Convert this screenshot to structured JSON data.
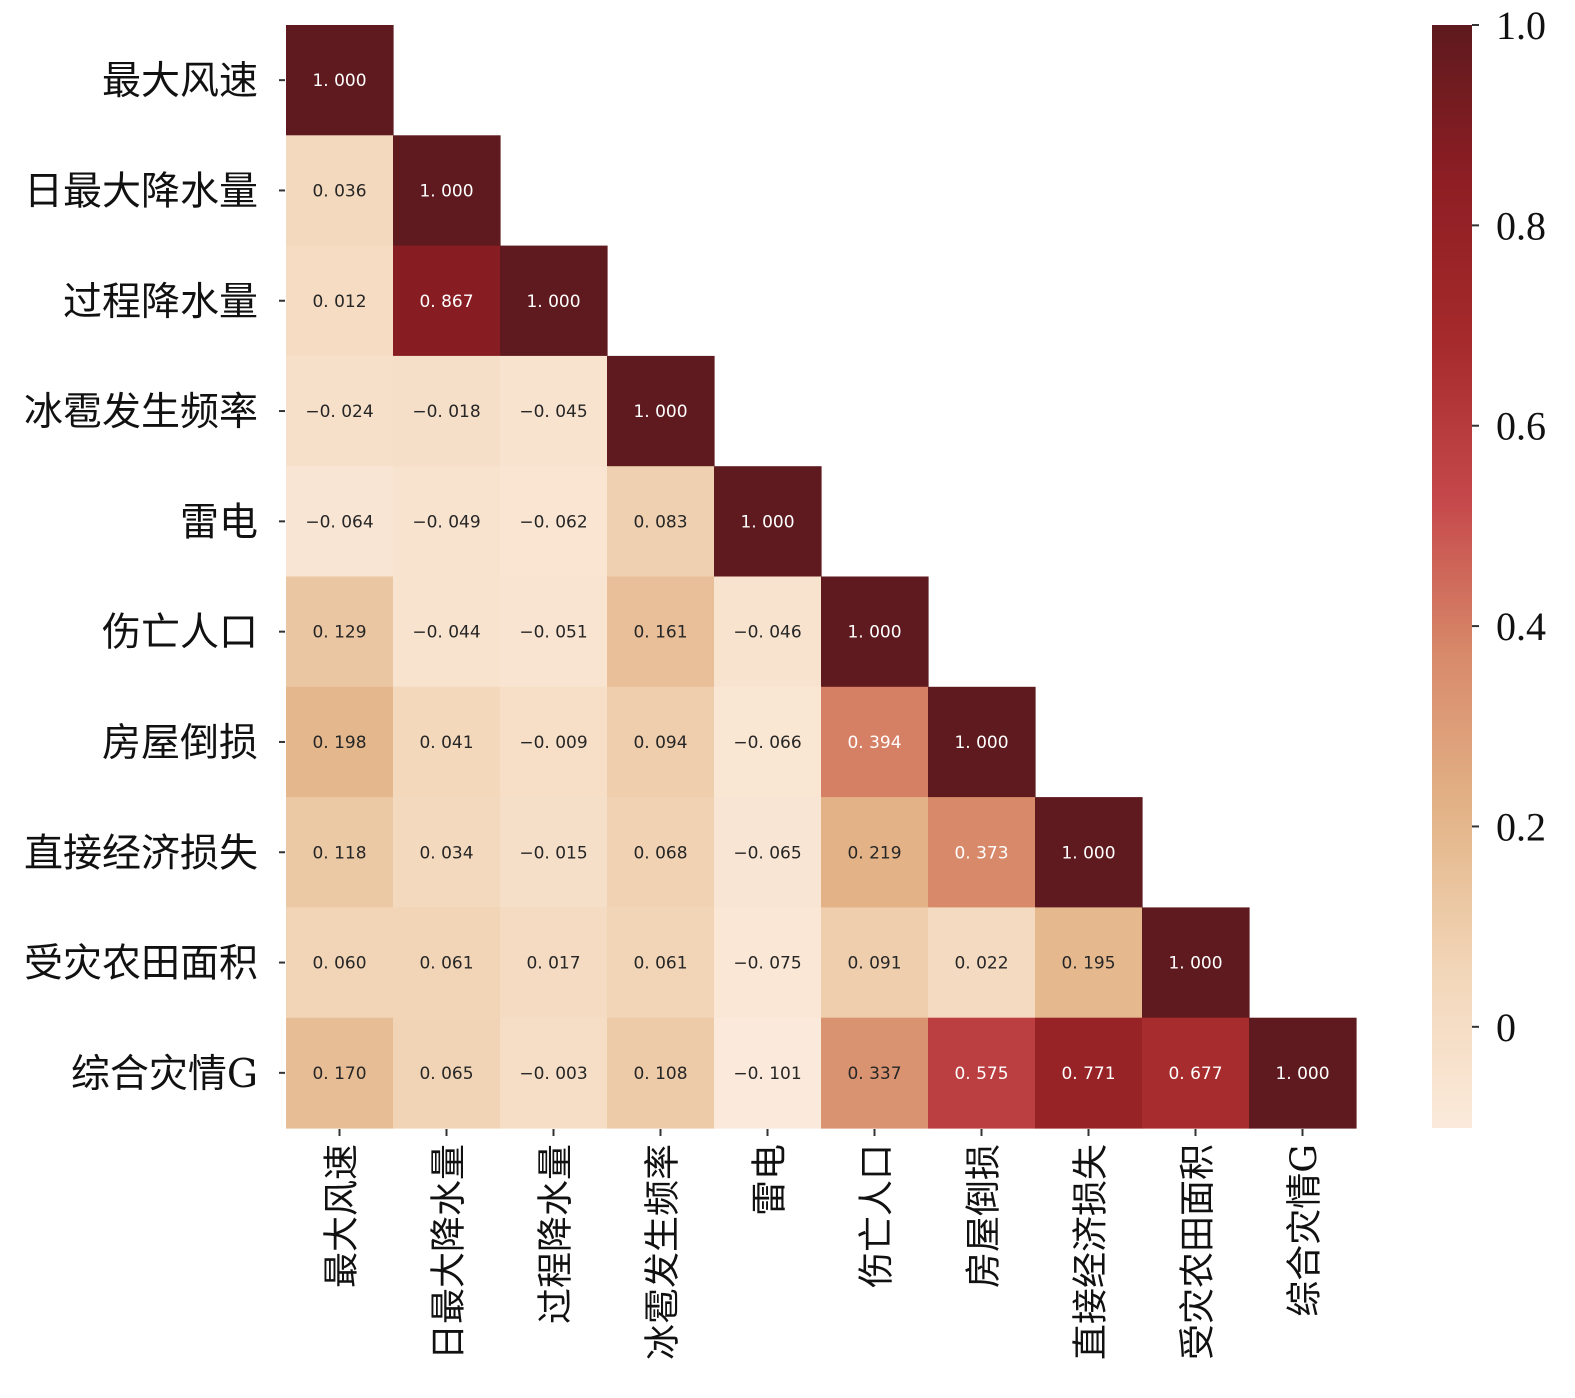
{
  "chart_data": {
    "type": "heatmap",
    "title": "",
    "xlabel": "",
    "ylabel": "",
    "labels": [
      "最大风速",
      "日最大降水量",
      "过程降水量",
      "冰雹发生频率",
      "雷电",
      "伤亡人口",
      "房屋倒损",
      "直接经济损失",
      "受灾农田面积",
      "综合灾情G"
    ],
    "matrix": [
      [
        1.0
      ],
      [
        0.036,
        1.0
      ],
      [
        0.012,
        0.867,
        1.0
      ],
      [
        -0.024,
        -0.018,
        -0.045,
        1.0
      ],
      [
        -0.064,
        -0.049,
        -0.062,
        0.083,
        1.0
      ],
      [
        0.129,
        -0.044,
        -0.051,
        0.161,
        -0.046,
        1.0
      ],
      [
        0.198,
        0.041,
        -0.009,
        0.094,
        -0.066,
        0.394,
        1.0
      ],
      [
        0.118,
        0.034,
        -0.015,
        0.068,
        -0.065,
        0.219,
        0.373,
        1.0
      ],
      [
        0.06,
        0.061,
        0.017,
        0.061,
        -0.075,
        0.091,
        0.022,
        0.195,
        1.0
      ],
      [
        0.17,
        0.065,
        -0.003,
        0.108,
        -0.101,
        0.337,
        0.575,
        0.771,
        0.677,
        1.0
      ]
    ],
    "colorbar": {
      "min": -0.101,
      "max": 1.0,
      "ticks": [
        1.0,
        0.8,
        0.6,
        0.4,
        0.2,
        0
      ],
      "tick_labels": [
        "1.0",
        "0.8",
        "0.6",
        "0.4",
        "0.2",
        "0"
      ]
    },
    "colormap": [
      "#fbeadb",
      "#f2d6b8",
      "#e3b488",
      "#d88a6a",
      "#c5474a",
      "#a52a2b",
      "#8e1e24",
      "#5e1a1e"
    ],
    "grid": false,
    "legend": "colorbar-right"
  }
}
